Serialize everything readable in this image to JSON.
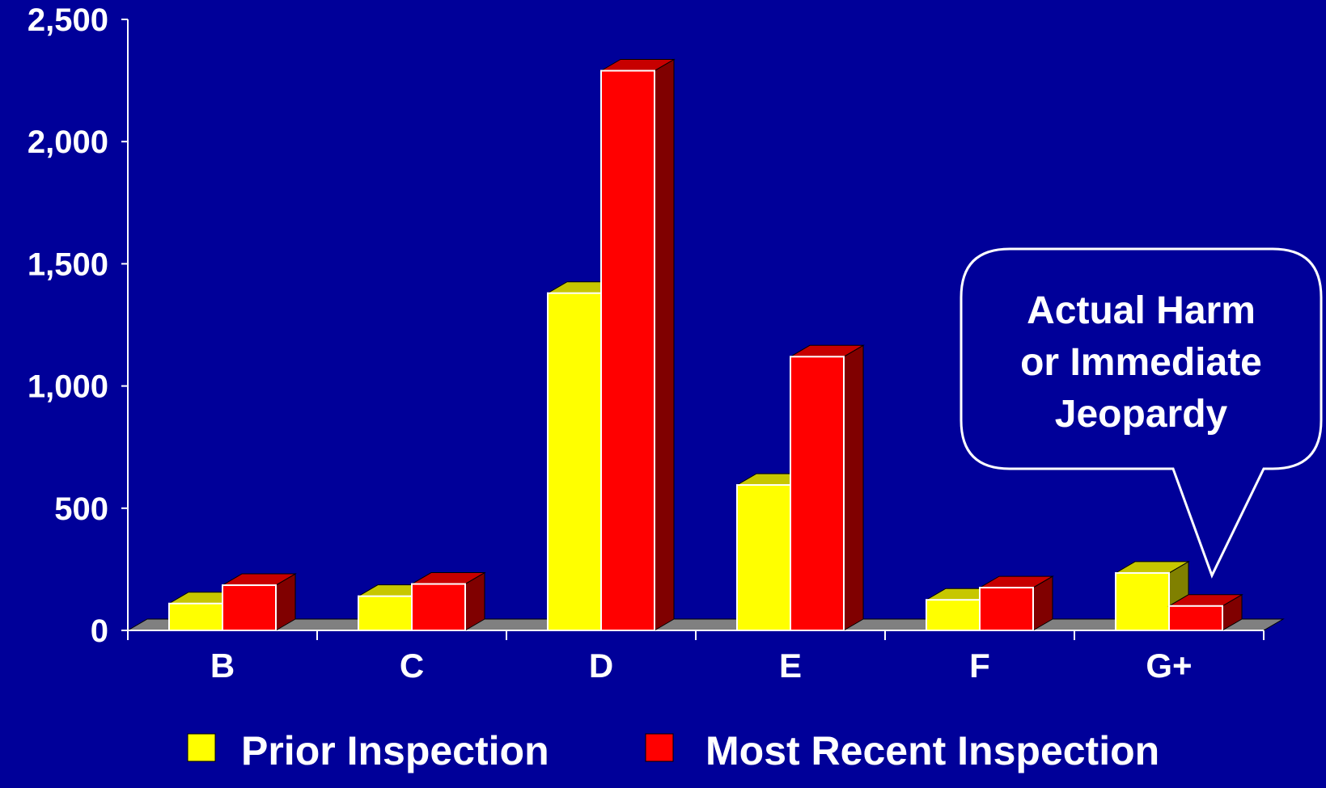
{
  "chart_data": {
    "type": "bar",
    "categories": [
      "B",
      "C",
      "D",
      "E",
      "F",
      "G+"
    ],
    "series": [
      {
        "name": "Prior Inspection",
        "values": [
          110,
          140,
          1380,
          595,
          125,
          235
        ],
        "color": "#ffff00"
      },
      {
        "name": "Most Recent Inspection",
        "values": [
          185,
          190,
          2290,
          1120,
          175,
          100
        ],
        "color": "#ff0000"
      }
    ],
    "yticks": [
      "0",
      "500",
      "1,000",
      "1,500",
      "2,000",
      "2,500"
    ],
    "ylim": [
      0,
      2500
    ],
    "grid": false,
    "legend_position": "bottom",
    "annotation": {
      "lines": [
        "Actual Harm",
        "or Immediate",
        "Jeopardy"
      ],
      "points_to": "G+"
    },
    "colors": {
      "background": "#000099",
      "floor": "#808080",
      "text": "#ffffff"
    }
  }
}
